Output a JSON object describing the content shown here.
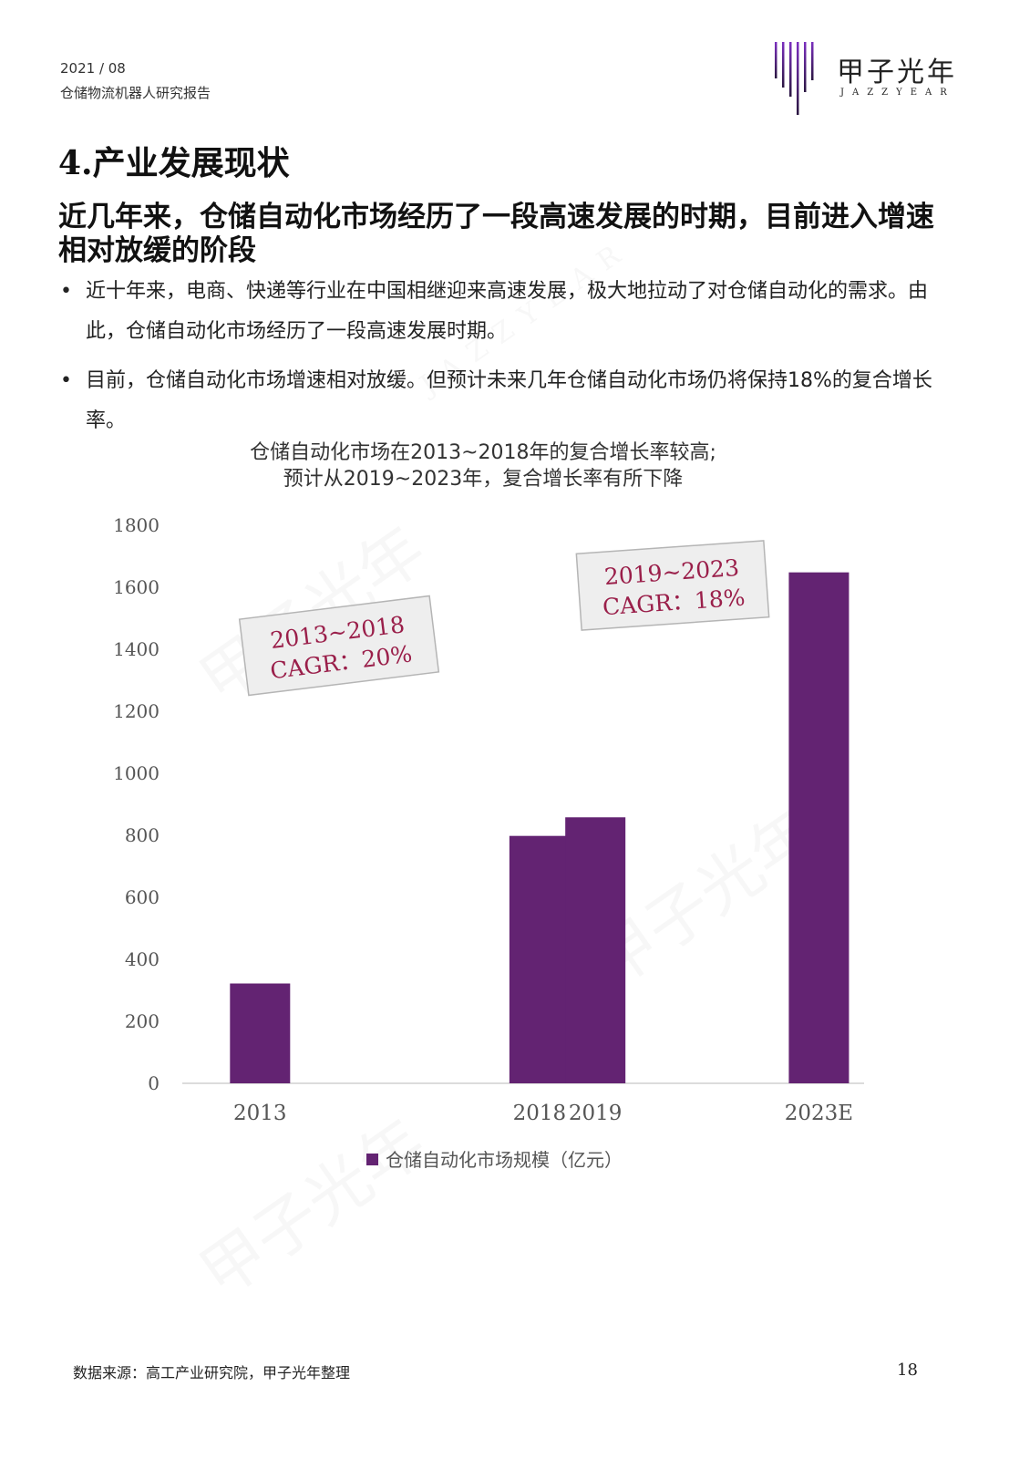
{
  "header": {
    "date": "2021 / 08",
    "report_title": "仓储物流机器人研究报告",
    "logo_cn": "甲子光年",
    "logo_en": "JAZZYEAR"
  },
  "section_title": "4.产业发展现状",
  "headline": "近几年来，仓储自动化市场经历了一段高速发展的时期，目前进入增速相对放缓的阶段",
  "bullets": [
    "近十年来，电商、快递等行业在中国相继迎来高速发展，极大地拉动了对仓储自动化的需求。由此，仓储自动化市场经历了一段高速发展时期。",
    "目前，仓储自动化市场增速相对放缓。但预计未来几年仓储自动化市场仍将保持18%的复合增长率。"
  ],
  "chart_data": {
    "type": "bar",
    "title_line1": "仓储自动化市场在2013~2018年的复合增长率较高;",
    "title_line2": "预计从2019~2023年，复合增长率有所下降",
    "categories": [
      "2013",
      "2018",
      "2019",
      "2023E"
    ],
    "x_positions": [
      2013,
      2018,
      2019,
      2023
    ],
    "series": [
      {
        "name": "仓储自动化市场规模（亿元）",
        "values": [
          322,
          798,
          858,
          1648
        ],
        "color": "#632372"
      }
    ],
    "ylim": [
      0,
      1800
    ],
    "yticks": [
      0,
      200,
      400,
      600,
      800,
      1000,
      1200,
      1400,
      1600,
      1800
    ],
    "grid": false,
    "legend": "bottom-center",
    "annotations": [
      {
        "line1": "2013~2018",
        "line2": "CAGR：20%"
      },
      {
        "line1": "2019~2023",
        "line2": "CAGR：18%"
      }
    ],
    "annotation_color": "#9a1f4a"
  },
  "watermark": {
    "cn": "甲子光年",
    "en": "JAZZYEAR"
  },
  "footer": {
    "source": "数据来源：高工产业研究院，甲子光年整理",
    "page_number": "18"
  }
}
